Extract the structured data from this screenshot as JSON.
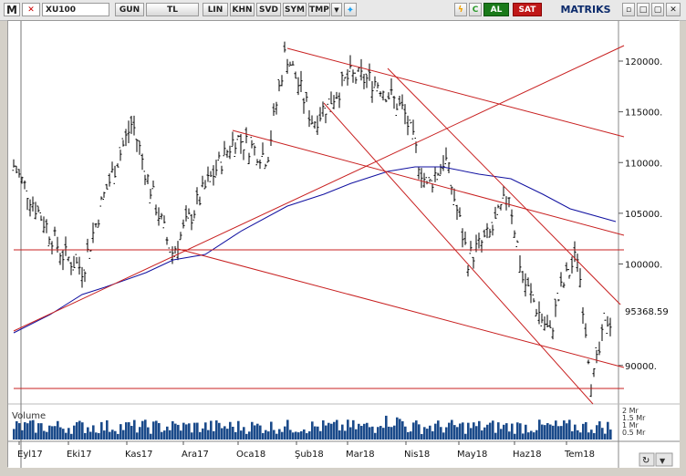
{
  "toolbar": {
    "app_letter": "M",
    "symbol": "XU100",
    "buttons": [
      "GUN",
      "TL",
      "LIN",
      "KHN",
      "SVD",
      "SYM",
      "TMP"
    ],
    "al_label": "AL",
    "sat_label": "SAT",
    "brand": "MATRIKS",
    "colors": {
      "al": "#1a7a1a",
      "sat": "#c01818",
      "twitter": "#1da1f2",
      "lightning": "#f0a000",
      "refresh": "#2a9a2a"
    }
  },
  "chart": {
    "last_value_label": "95368.59",
    "volume_label": "Volume",
    "volume_ticks": [
      "2 Mr",
      "1.5 Mr",
      "1 Mr",
      "0.5 Mr"
    ],
    "y_ticks": [
      {
        "value": 120000,
        "label": "120000."
      },
      {
        "value": 115000,
        "label": "115000."
      },
      {
        "value": 110000,
        "label": "110000."
      },
      {
        "value": 105000,
        "label": "105000."
      },
      {
        "value": 100000,
        "label": "100000."
      },
      {
        "value": 90000,
        "label": "90000."
      }
    ],
    "x_ticks": [
      "Eyl17",
      "Eki17",
      "Kas17",
      "Ara17",
      "Oca18",
      "Şub18",
      "Mar18",
      "Nis18",
      "May18",
      "Haz18",
      "Tem18"
    ],
    "colors": {
      "price": "#000000",
      "ma": "#1010a0",
      "trend": "#c82020",
      "volume": "#1a4a8a"
    }
  }
}
